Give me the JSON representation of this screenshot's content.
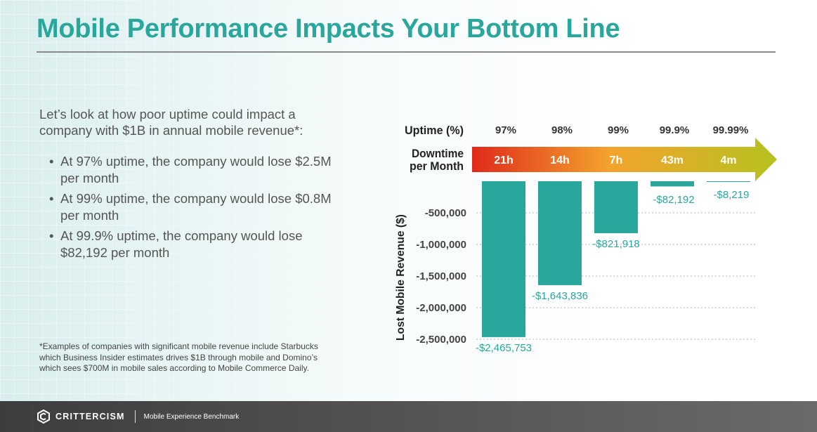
{
  "title": "Mobile Performance Impacts Your Bottom Line",
  "intro": "Let’s look at how poor uptime could impact a company with $1B in annual mobile revenue*:",
  "bullets": [
    "At 97% uptime, the company would lose $2.5M per month",
    "At 99% uptime, the company would lose $0.8M  per month",
    "At 99.9% uptime, the company would lose $82,192 per month"
  ],
  "footnote": "*Examples of companies with significant mobile revenue include Starbucks which Business Insider estimates drives $1B through mobile and Domino’s which sees $700M in mobile sales according to Mobile Commerce Daily.",
  "footer": {
    "brand": "CRITTERCISM",
    "subtitle": "Mobile Experience Benchmark",
    "logo_icon": "crittercism-logo-icon"
  },
  "colors": {
    "accent": "#2aa79c",
    "bar": "#2aa79c",
    "arrow_start": "#e02a1b",
    "arrow_mid": "#f3a32d",
    "arrow_end": "#b6c21f"
  },
  "chart_data": {
    "type": "bar",
    "uptime_label": "Uptime (%)",
    "downtime_label": [
      "Downtime",
      "per Month"
    ],
    "categories": [
      "97%",
      "98%",
      "99%",
      "99.9%",
      "99.99%"
    ],
    "downtime": [
      "21h",
      "14h",
      "7h",
      "43m",
      "4m"
    ],
    "values": [
      -2465753,
      -1643836,
      -821918,
      -82192,
      -8219
    ],
    "value_labels": [
      "-$2,465,753",
      "-$1,643,836",
      "-$821,918",
      "-$82,192",
      "-$8,219"
    ],
    "ylabel": "Lost Mobile Revenue ($)",
    "yticks": [
      -500000,
      -1000000,
      -1500000,
      -2000000,
      -2500000
    ],
    "ytick_labels": [
      "-500,000",
      "-1,000,000",
      "-1,500,000",
      "-2,000,000",
      "-2,500,000"
    ],
    "ylim": [
      -2500000,
      0
    ],
    "grid": true
  }
}
